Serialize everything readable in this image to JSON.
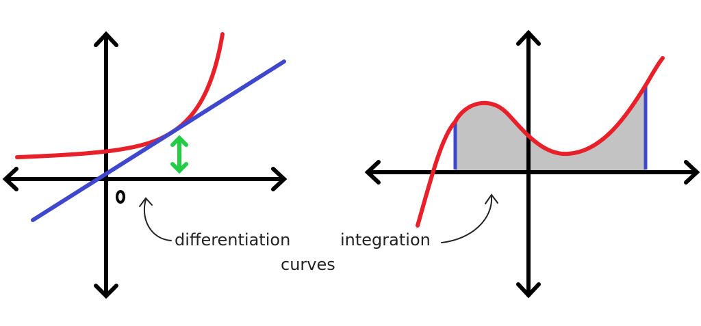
{
  "labels": {
    "origin": "0",
    "differentiation": "differentiation",
    "integration": "integration",
    "curves": "curves"
  },
  "colors": {
    "axes": "#000000",
    "curve": "#e8202a",
    "tangent_and_bounds": "#3f48cc",
    "difference_arrow": "#22cc44",
    "area_fill": "#c3c3c3"
  }
}
